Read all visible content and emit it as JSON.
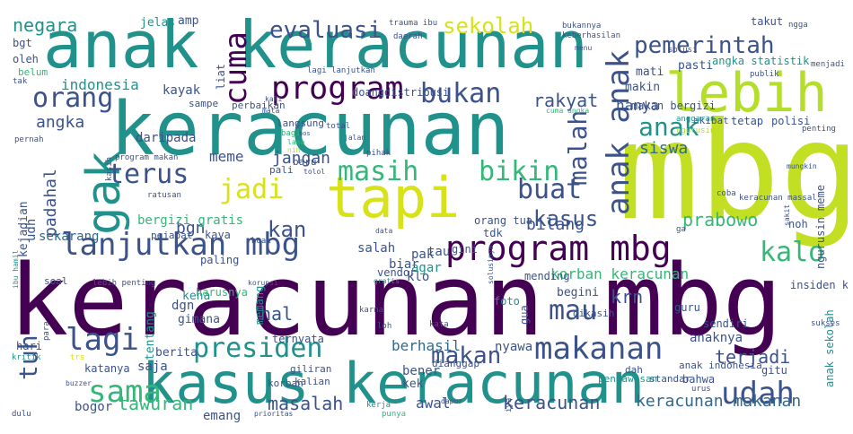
{
  "palette": {
    "dark_purple": "#440154",
    "indigo": "#3b528b",
    "blue": "#31688e",
    "teal": "#21918c",
    "green": "#35b779",
    "lime": "#b5de2b",
    "yellow": "#d8e219"
  },
  "words": [
    "keracunan mbg",
    "mbg",
    "keracunan",
    "anak keracunan",
    "kasus keracunan",
    "lebih",
    "tapi",
    "gak",
    "program mbg",
    "lanjutkan mbg",
    "masih",
    "bikin",
    "program",
    "presiden",
    "makanan",
    "sama",
    "udah",
    "orang",
    "bukan",
    "jadi",
    "terus",
    "anak anak",
    "pemerintah",
    "evaluasi",
    "sekolah",
    "cuma",
    "negara",
    "mau",
    "lagi",
    "kalo",
    "makan",
    "buat",
    "malah",
    "anak",
    "kasus",
    "siswa",
    "tuh",
    "kan",
    "keracunan",
    "keracunan makanan",
    "masalah",
    "tawuran",
    "indonesia",
    "rakyat",
    "angka",
    "padahal",
    "meme",
    "jangan",
    "bgn",
    "prabowo",
    "krn",
    "hal",
    "bilang",
    "terjadi",
    "anaknya",
    "berhasil",
    "korban keracunan",
    "hanya",
    "makin",
    "mati",
    "bergizi gratis",
    "daripada",
    "kayak",
    "udh",
    "sekarang",
    "kejadian",
    "bogor",
    "emang",
    "awal",
    "nyawa",
    "bener",
    "kek",
    "saja",
    "katanya",
    "berita",
    "gimana",
    "dgn",
    "kena",
    "hari",
    "salah",
    "pak",
    "tau",
    "biar",
    "klo",
    "agar",
    "vendor",
    "tentang",
    "ternyata",
    "paling",
    "kaya",
    "pejabat",
    "soal",
    "harusnya",
    "makan bergizi",
    "takut",
    "pasti",
    "angka statistik",
    "polisi",
    "tetap",
    "akibat",
    "gitu",
    "sendiri",
    "guru",
    "gini",
    "orang tua",
    "tdk",
    "mending",
    "begini",
    "dikasih",
    "gua",
    "foto",
    "noh",
    "insiden keracunan",
    "ngurusin meme",
    "anak sekolah",
    "bahwa",
    "standar",
    "anak indonesia",
    "pengawasan",
    "dah",
    "giliran",
    "kalian",
    "dianggap",
    "memang",
    "korban",
    "jelas",
    "amp",
    "bgt",
    "oleh",
    "belum",
    "tak",
    "pernah",
    "sampe",
    "liat",
    "perbaikan",
    "mata",
    "doang",
    "distribusi",
    "bukannya",
    "keberhasilan",
    "ngga",
    "trauma ibu",
    "daerah",
    "lagi lanjutkan",
    "solusi",
    "publik",
    "menjadi",
    "penting",
    "jalan",
    "langsung",
    "bagi",
    "total",
    "cuma angka",
    "anggaran",
    "ngurusin",
    "program makan",
    "kasih",
    "tolol",
    "baru",
    "pihak",
    "pali",
    "ratusan",
    "hoak",
    "korupsi",
    "lebih penting",
    "ibu hamil",
    "kritik",
    "para",
    "dulu",
    "buzzer",
    "trs",
    "prioritas",
    "punya",
    "urus",
    "loh",
    "kata",
    "sukses",
    "sakit",
    "coba",
    "keracunan massal",
    "ga",
    "mungkin",
    "data",
    "solusinya",
    "gratis",
    "kali",
    "lama",
    "nih",
    "iya",
    "dapur",
    "kerja",
    "menu",
    "karna",
    "bos"
  ]
}
